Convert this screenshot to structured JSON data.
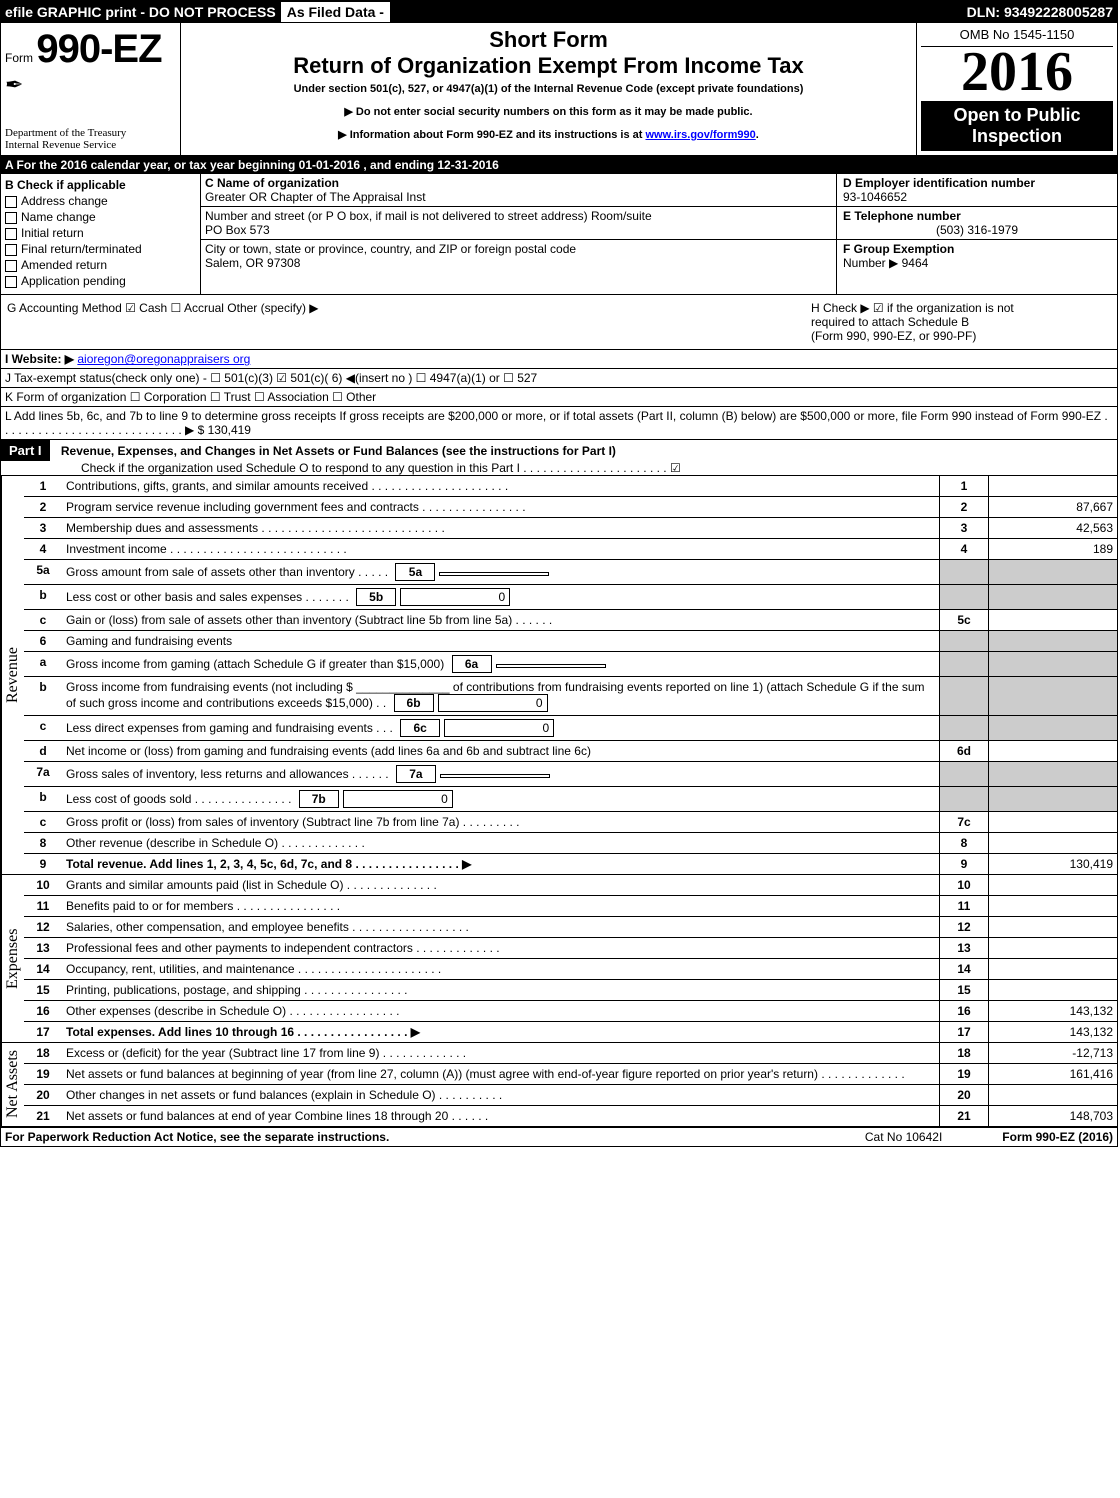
{
  "topbar": {
    "left": "efile GRAPHIC print - DO NOT PROCESS",
    "mid": "As Filed Data -",
    "right": "DLN: 93492228005287"
  },
  "header": {
    "form_word": "Form",
    "form_no": "990-EZ",
    "dept1": "Department of the Treasury",
    "dept2": "Internal Revenue Service",
    "short": "Short Form",
    "main": "Return of Organization Exempt From Income Tax",
    "sub": "Under section 501(c), 527, or 4947(a)(1) of the Internal Revenue Code (except private foundations)",
    "note1": "▶ Do not enter social security numbers on this form as it may be made public.",
    "note2_pre": "▶ Information about Form 990-EZ and its instructions is at ",
    "note2_link": "www.irs.gov/form990",
    "omb": "OMB No 1545-1150",
    "year": "2016",
    "open1": "Open to Public",
    "open2": "Inspection"
  },
  "sectionA": "A  For the 2016 calendar year, or tax year beginning 01-01-2016            , and ending 12-31-2016",
  "checkB": {
    "title": "B  Check if applicable",
    "items": [
      "Address change",
      "Name change",
      "Initial return",
      "Final return/terminated",
      "Amended return",
      "Application pending"
    ]
  },
  "nameBlock": {
    "c_label": "C Name of organization",
    "c_value": "Greater OR Chapter of The Appraisal Inst",
    "addr_label": "Number and street (or P O  box, if mail is not delivered to street address)  Room/suite",
    "addr_value": "PO Box 573",
    "city_label": "City or town, state or province, country, and ZIP or foreign postal code",
    "city_value": "Salem, OR  97308"
  },
  "rightInfo": {
    "d_label": "D Employer identification number",
    "d_value": "93-1046652",
    "e_label": "E Telephone number",
    "e_value": "(503) 316-1979",
    "f_label": "F Group Exemption",
    "f_label2": "Number  ▶",
    "f_value": "9464"
  },
  "gh": {
    "g": "G Accounting Method    ☑ Cash   ☐ Accrual   Other (specify) ▶",
    "h1": "H   Check ▶   ☑  if the organization is not",
    "h2": "required to attach Schedule B",
    "h3": "(Form 990, 990-EZ, or 990-PF)",
    "i_label": "I Website: ▶",
    "i_value": "aioregon@oregonappraisers org",
    "j": "J Tax-exempt status(check only one) - ☐ 501(c)(3) ☑ 501(c)( 6) ◀(insert no ) ☐ 4947(a)(1) or ☐ 527",
    "k": "K Form of organization    ☐ Corporation  ☐ Trust  ☐ Association  ☐ Other",
    "l": "L Add lines 5b, 6c, and 7b to line 9 to determine gross receipts  If gross receipts are $200,000 or more, or if total assets (Part II, column (B) below) are $500,000 or more, file Form 990 instead of Form 990-EZ  . . . . . . . . . . . . . . . . . . . . . . . . . . . .  ▶ $ 130,419"
  },
  "part1": {
    "label": "Part I",
    "title": "Revenue, Expenses, and Changes in Net Assets or Fund Balances (see the instructions for Part I)",
    "subtitle": "Check if the organization used Schedule O to respond to any question in this Part I . . . . . . . . . . . . . . . . . . . . . .  ☑"
  },
  "sections": {
    "revenue": "Revenue",
    "expenses": "Expenses",
    "netassets": "Net Assets"
  },
  "lines": [
    {
      "n": "1",
      "d": "Contributions, gifts, grants, and similar amounts received . . . . . . . . . . . . . . . . . . . . .",
      "b": "1",
      "a": ""
    },
    {
      "n": "2",
      "d": "Program service revenue including government fees and contracts . . . . . . . . . . . . . . . .",
      "b": "2",
      "a": "87,667"
    },
    {
      "n": "3",
      "d": "Membership dues and assessments . . . . . . . . . . . . . . . . . . . . . . . . . . . .",
      "b": "3",
      "a": "42,563"
    },
    {
      "n": "4",
      "d": "Investment income . . . . . . . . . . . . . . . . . . . . . . . . . . .",
      "b": "4",
      "a": "189"
    },
    {
      "n": "5a",
      "d": "Gross amount from sale of assets other than inventory . . . . .",
      "sub": "5a",
      "subv": "",
      "gray": true
    },
    {
      "n": "b",
      "d": "Less  cost or other basis and sales expenses . . . . . . .",
      "sub": "5b",
      "subv": "0",
      "gray": true
    },
    {
      "n": "c",
      "d": "Gain or (loss) from sale of assets other than inventory (Subtract line 5b from line 5a) . . . . . .",
      "b": "5c",
      "a": ""
    },
    {
      "n": "6",
      "d": "Gaming and fundraising events",
      "gray": true
    },
    {
      "n": "a",
      "d": "Gross income from gaming (attach Schedule G if greater than $15,000)",
      "sub": "6a",
      "subv": "",
      "gray": true
    },
    {
      "n": "b",
      "d": "Gross income from fundraising events (not including $ ______________ of contributions from fundraising events reported on line 1) (attach Schedule G if the sum of such gross income and contributions exceeds $15,000)   . .",
      "sub": "6b",
      "subv": "0",
      "gray": true
    },
    {
      "n": "c",
      "d": "Less  direct expenses from gaming and fundraising events    . . .",
      "sub": "6c",
      "subv": "0",
      "gray": true
    },
    {
      "n": "d",
      "d": "Net income or (loss) from gaming and fundraising events (add lines 6a and 6b and subtract line 6c)",
      "b": "6d",
      "a": ""
    },
    {
      "n": "7a",
      "d": "Gross sales of inventory, less returns and allowances . . . . . .",
      "sub": "7a",
      "subv": "",
      "gray": true
    },
    {
      "n": "b",
      "d": "Less  cost of goods sold         . . . . . . . . . . . . . . .",
      "sub": "7b",
      "subv": "0",
      "gray": true
    },
    {
      "n": "c",
      "d": "Gross profit or (loss) from sales of inventory (Subtract line 7b from line 7a) . . . . . . . . .",
      "b": "7c",
      "a": ""
    },
    {
      "n": "8",
      "d": "Other revenue (describe in Schedule O)                          . . . . . . . . . . . . .",
      "b": "8",
      "a": ""
    },
    {
      "n": "9",
      "d": "Total revenue. Add lines 1, 2, 3, 4, 5c, 6d, 7c, and 8 . . . . . . . . . . . . . . . .  ▶",
      "b": "9",
      "a": "130,419",
      "bold": true
    }
  ],
  "expenses": [
    {
      "n": "10",
      "d": "Grants and similar amounts paid (list in Schedule O)           . . . . . . . . . . . . . .",
      "b": "10",
      "a": ""
    },
    {
      "n": "11",
      "d": "Benefits paid to or for members                         . . . . . . . . . . . . . . . .",
      "b": "11",
      "a": ""
    },
    {
      "n": "12",
      "d": "Salaries, other compensation, and employee benefits . . . . . . . . . . . . . . . . . .",
      "b": "12",
      "a": ""
    },
    {
      "n": "13",
      "d": "Professional fees and other payments to independent contractors  . . . . . . . . . . . . .",
      "b": "13",
      "a": ""
    },
    {
      "n": "14",
      "d": "Occupancy, rent, utilities, and maintenance . . . . . . . . . . . . . . . . . . . . . .",
      "b": "14",
      "a": ""
    },
    {
      "n": "15",
      "d": "Printing, publications, postage, and shipping            . . . . . . . . . . . . . . . .",
      "b": "15",
      "a": ""
    },
    {
      "n": "16",
      "d": "Other expenses (describe in Schedule O)              . . . . . . . . . . . . . . . . .",
      "b": "16",
      "a": "143,132"
    },
    {
      "n": "17",
      "d": "Total expenses. Add lines 10 through 16        . . . . . . . . . . . . . . . . .  ▶",
      "b": "17",
      "a": "143,132",
      "bold": true
    }
  ],
  "netassets": [
    {
      "n": "18",
      "d": "Excess or (deficit) for the year (Subtract line 17 from line 9)     . . . . . . . . . . . . .",
      "b": "18",
      "a": "-12,713"
    },
    {
      "n": "19",
      "d": "Net assets or fund balances at beginning of year (from line 27, column (A)) (must agree with end-of-year figure reported on prior year's return)              . . . . . . . . . . . . .",
      "b": "19",
      "a": "161,416"
    },
    {
      "n": "20",
      "d": "Other changes in net assets or fund balances (explain in Schedule O)    . . . . . . . . . .",
      "b": "20",
      "a": ""
    },
    {
      "n": "21",
      "d": "Net assets or fund balances at end of year  Combine lines 18 through 20         . . . . . .",
      "b": "21",
      "a": "148,703"
    }
  ],
  "footer": {
    "l": "For Paperwork Reduction Act Notice, see the separate instructions.",
    "m": "Cat No  10642I",
    "r": "Form 990-EZ (2016)"
  }
}
